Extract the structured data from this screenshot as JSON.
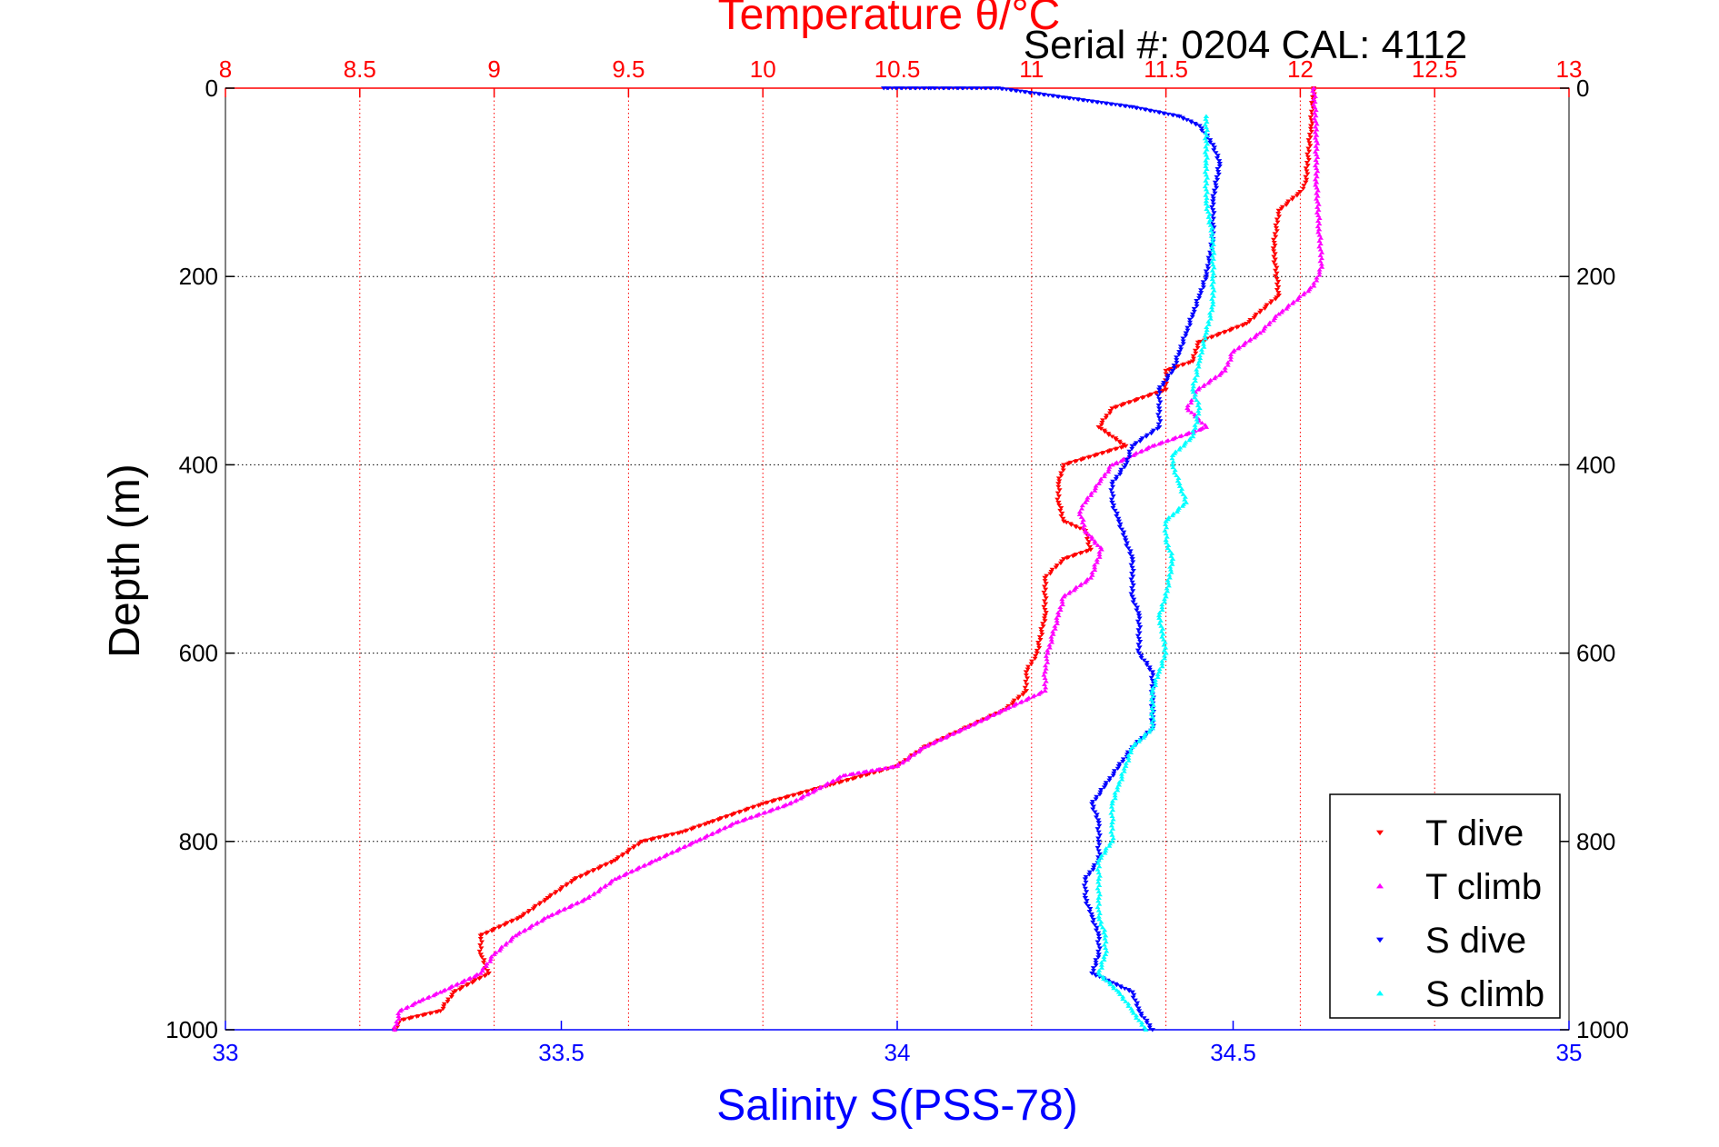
{
  "chart_data": {
    "type": "scatter",
    "title": "Temperature θ/°C",
    "subtitle": "Serial #: 0204  CAL: 4112",
    "xlabel": "Salinity S(PSS-78)",
    "ylabel": "Depth (m)",
    "x_top": {
      "label": "Temperature θ/°C",
      "range": [
        8,
        13
      ],
      "ticks": [
        "8",
        "8.5",
        "9",
        "9.5",
        "10",
        "10.5",
        "11",
        "11.5",
        "12",
        "12.5",
        "13"
      ]
    },
    "x_bottom": {
      "label": "Salinity S(PSS-78)",
      "range": [
        33,
        35
      ],
      "ticks": [
        "33",
        "33.5",
        "34",
        "34.5",
        "35"
      ]
    },
    "y": {
      "label": "Depth (m)",
      "range": [
        0,
        1000
      ],
      "reversed": true,
      "ticks": [
        "0",
        "200",
        "400",
        "600",
        "800",
        "1000"
      ]
    },
    "grid": true,
    "legend_position": "bottom-right",
    "series": [
      {
        "name": "T dive",
        "axis": "temperature",
        "color": "#ff0000",
        "marker": "triangle-down",
        "points": [
          [
            12.05,
            0
          ],
          [
            12.04,
            40
          ],
          [
            12.02,
            100
          ],
          [
            12.0,
            110
          ],
          [
            11.92,
            130
          ],
          [
            11.9,
            170
          ],
          [
            11.92,
            220
          ],
          [
            11.8,
            250
          ],
          [
            11.62,
            270
          ],
          [
            11.6,
            290
          ],
          [
            11.5,
            300
          ],
          [
            11.5,
            320
          ],
          [
            11.3,
            340
          ],
          [
            11.25,
            360
          ],
          [
            11.35,
            380
          ],
          [
            11.12,
            400
          ],
          [
            11.1,
            420
          ],
          [
            11.1,
            440
          ],
          [
            11.12,
            460
          ],
          [
            11.2,
            470
          ],
          [
            11.22,
            490
          ],
          [
            11.12,
            500
          ],
          [
            11.05,
            520
          ],
          [
            11.05,
            560
          ],
          [
            11.02,
            600
          ],
          [
            10.98,
            620
          ],
          [
            10.98,
            640
          ],
          [
            10.9,
            660
          ],
          [
            10.75,
            680
          ],
          [
            10.6,
            700
          ],
          [
            10.5,
            720
          ],
          [
            10.25,
            740
          ],
          [
            10.0,
            760
          ],
          [
            9.8,
            780
          ],
          [
            9.7,
            790
          ],
          [
            9.55,
            800
          ],
          [
            9.45,
            820
          ],
          [
            9.3,
            840
          ],
          [
            9.2,
            860
          ],
          [
            9.1,
            880
          ],
          [
            8.95,
            900
          ],
          [
            8.95,
            920
          ],
          [
            8.98,
            940
          ],
          [
            8.85,
            960
          ],
          [
            8.8,
            980
          ],
          [
            8.65,
            990
          ],
          [
            8.63,
            1000
          ]
        ]
      },
      {
        "name": "T climb",
        "axis": "temperature",
        "color": "#ff00ff",
        "marker": "triangle-up",
        "points": [
          [
            12.05,
            0
          ],
          [
            12.06,
            50
          ],
          [
            12.06,
            100
          ],
          [
            12.07,
            150
          ],
          [
            12.08,
            190
          ],
          [
            12.05,
            210
          ],
          [
            11.92,
            240
          ],
          [
            11.85,
            260
          ],
          [
            11.75,
            280
          ],
          [
            11.72,
            300
          ],
          [
            11.62,
            320
          ],
          [
            11.58,
            340
          ],
          [
            11.65,
            360
          ],
          [
            11.45,
            380
          ],
          [
            11.3,
            400
          ],
          [
            11.25,
            420
          ],
          [
            11.2,
            440
          ],
          [
            11.18,
            450
          ],
          [
            11.2,
            470
          ],
          [
            11.26,
            490
          ],
          [
            11.22,
            520
          ],
          [
            11.12,
            540
          ],
          [
            11.1,
            560
          ],
          [
            11.08,
            580
          ],
          [
            11.06,
            600
          ],
          [
            11.05,
            620
          ],
          [
            11.05,
            640
          ],
          [
            10.9,
            660
          ],
          [
            10.75,
            680
          ],
          [
            10.6,
            700
          ],
          [
            10.5,
            720
          ],
          [
            10.3,
            730
          ],
          [
            10.1,
            760
          ],
          [
            9.9,
            780
          ],
          [
            9.75,
            800
          ],
          [
            9.6,
            820
          ],
          [
            9.45,
            840
          ],
          [
            9.35,
            860
          ],
          [
            9.2,
            880
          ],
          [
            9.08,
            900
          ],
          [
            9.0,
            920
          ],
          [
            8.95,
            940
          ],
          [
            8.8,
            960
          ],
          [
            8.72,
            970
          ],
          [
            8.65,
            980
          ],
          [
            8.63,
            1000
          ]
        ]
      },
      {
        "name": "S dive",
        "axis": "salinity",
        "color": "#0000ff",
        "marker": "triangle-down",
        "points": [
          [
            33.98,
            0
          ],
          [
            34.05,
            0
          ],
          [
            34.15,
            0
          ],
          [
            34.25,
            10
          ],
          [
            34.35,
            20
          ],
          [
            34.42,
            30
          ],
          [
            34.45,
            40
          ],
          [
            34.47,
            60
          ],
          [
            34.48,
            80
          ],
          [
            34.47,
            120
          ],
          [
            34.47,
            160
          ],
          [
            34.46,
            200
          ],
          [
            34.45,
            220
          ],
          [
            34.44,
            240
          ],
          [
            34.43,
            260
          ],
          [
            34.42,
            280
          ],
          [
            34.41,
            300
          ],
          [
            34.39,
            320
          ],
          [
            34.39,
            340
          ],
          [
            34.39,
            360
          ],
          [
            34.35,
            380
          ],
          [
            34.34,
            400
          ],
          [
            34.32,
            420
          ],
          [
            34.32,
            440
          ],
          [
            34.33,
            460
          ],
          [
            34.34,
            480
          ],
          [
            34.35,
            500
          ],
          [
            34.35,
            540
          ],
          [
            34.36,
            560
          ],
          [
            34.36,
            600
          ],
          [
            34.38,
            620
          ],
          [
            34.38,
            650
          ],
          [
            34.38,
            680
          ],
          [
            34.35,
            700
          ],
          [
            34.33,
            720
          ],
          [
            34.31,
            740
          ],
          [
            34.29,
            760
          ],
          [
            34.3,
            780
          ],
          [
            34.3,
            800
          ],
          [
            34.3,
            820
          ],
          [
            34.28,
            840
          ],
          [
            34.28,
            860
          ],
          [
            34.29,
            880
          ],
          [
            34.3,
            900
          ],
          [
            34.3,
            920
          ],
          [
            34.29,
            940
          ],
          [
            34.35,
            960
          ],
          [
            34.36,
            980
          ],
          [
            34.38,
            1000
          ]
        ]
      },
      {
        "name": "S climb",
        "axis": "salinity",
        "color": "#00ffff",
        "marker": "triangle-up",
        "points": [
          [
            34.46,
            30
          ],
          [
            34.46,
            80
          ],
          [
            34.46,
            120
          ],
          [
            34.47,
            160
          ],
          [
            34.47,
            200
          ],
          [
            34.47,
            230
          ],
          [
            34.46,
            260
          ],
          [
            34.45,
            290
          ],
          [
            34.44,
            320
          ],
          [
            34.45,
            340
          ],
          [
            34.44,
            370
          ],
          [
            34.41,
            390
          ],
          [
            34.41,
            400
          ],
          [
            34.42,
            420
          ],
          [
            34.43,
            440
          ],
          [
            34.4,
            460
          ],
          [
            34.4,
            480
          ],
          [
            34.41,
            500
          ],
          [
            34.4,
            540
          ],
          [
            34.39,
            560
          ],
          [
            34.4,
            600
          ],
          [
            34.39,
            620
          ],
          [
            34.38,
            640
          ],
          [
            34.38,
            680
          ],
          [
            34.35,
            700
          ],
          [
            34.34,
            720
          ],
          [
            34.33,
            740
          ],
          [
            34.32,
            760
          ],
          [
            34.32,
            780
          ],
          [
            34.32,
            800
          ],
          [
            34.3,
            820
          ],
          [
            34.3,
            840
          ],
          [
            34.3,
            860
          ],
          [
            34.3,
            880
          ],
          [
            34.31,
            900
          ],
          [
            34.31,
            920
          ],
          [
            34.3,
            940
          ],
          [
            34.33,
            960
          ],
          [
            34.35,
            980
          ],
          [
            34.37,
            1000
          ]
        ]
      }
    ]
  }
}
